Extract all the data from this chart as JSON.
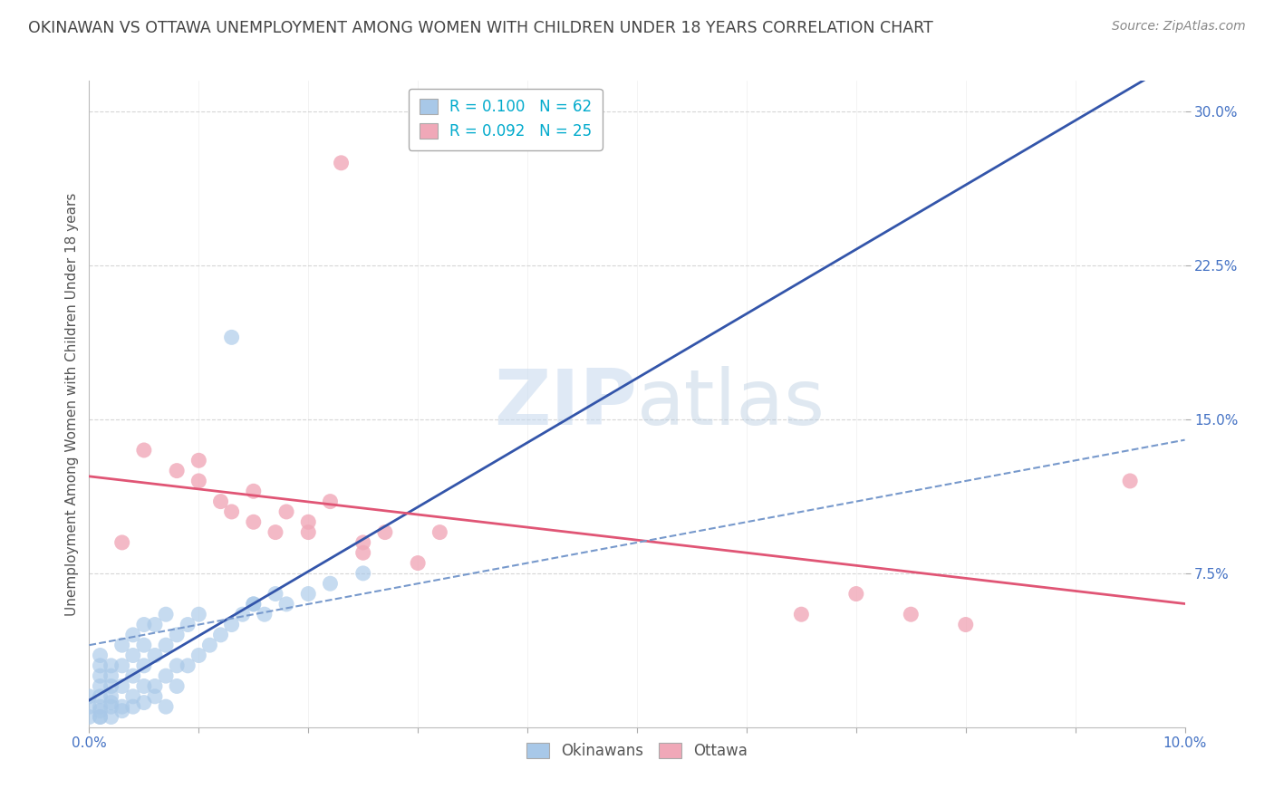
{
  "title": "OKINAWAN VS OTTAWA UNEMPLOYMENT AMONG WOMEN WITH CHILDREN UNDER 18 YEARS CORRELATION CHART",
  "source": "Source: ZipAtlas.com",
  "ylabel": "Unemployment Among Women with Children Under 18 years",
  "ytick_vals": [
    0.075,
    0.15,
    0.225,
    0.3
  ],
  "ytick_labels": [
    "7.5%",
    "15.0%",
    "22.5%",
    "30.0%"
  ],
  "xlim": [
    0.0,
    0.1
  ],
  "ylim": [
    0.0,
    0.315
  ],
  "watermark_zip": "ZIP",
  "watermark_atlas": "atlas",
  "legend": {
    "okinawan_R": "0.100",
    "okinawan_N": "62",
    "ottawa_R": "0.092",
    "ottawa_N": "25"
  },
  "okinawan_color": "#a8c8e8",
  "ottawa_color": "#f0a8b8",
  "okinawan_line_color": "#3355aa",
  "ottawa_line_color": "#e05575",
  "background_color": "#ffffff",
  "okinawan_x": [
    0.0,
    0.0,
    0.0,
    0.001,
    0.001,
    0.001,
    0.001,
    0.001,
    0.001,
    0.001,
    0.002,
    0.002,
    0.002,
    0.002,
    0.002,
    0.003,
    0.003,
    0.003,
    0.003,
    0.004,
    0.004,
    0.004,
    0.004,
    0.005,
    0.005,
    0.005,
    0.005,
    0.006,
    0.006,
    0.006,
    0.007,
    0.007,
    0.007,
    0.008,
    0.008,
    0.009,
    0.009,
    0.01,
    0.01,
    0.011,
    0.012,
    0.013,
    0.014,
    0.015,
    0.016,
    0.017,
    0.018,
    0.02,
    0.022,
    0.025,
    0.001,
    0.001,
    0.002,
    0.002,
    0.003,
    0.004,
    0.005,
    0.006,
    0.007,
    0.008,
    0.013,
    0.015
  ],
  "okinawan_y": [
    0.005,
    0.01,
    0.015,
    0.005,
    0.01,
    0.015,
    0.02,
    0.025,
    0.03,
    0.035,
    0.01,
    0.015,
    0.02,
    0.025,
    0.03,
    0.01,
    0.02,
    0.03,
    0.04,
    0.015,
    0.025,
    0.035,
    0.045,
    0.02,
    0.03,
    0.04,
    0.05,
    0.02,
    0.035,
    0.05,
    0.025,
    0.04,
    0.055,
    0.03,
    0.045,
    0.03,
    0.05,
    0.035,
    0.055,
    0.04,
    0.045,
    0.05,
    0.055,
    0.06,
    0.055,
    0.065,
    0.06,
    0.065,
    0.07,
    0.075,
    0.005,
    0.008,
    0.005,
    0.012,
    0.008,
    0.01,
    0.012,
    0.015,
    0.01,
    0.02,
    0.19,
    0.06
  ],
  "ottawa_x": [
    0.005,
    0.008,
    0.01,
    0.012,
    0.013,
    0.015,
    0.017,
    0.018,
    0.02,
    0.022,
    0.023,
    0.025,
    0.027,
    0.03,
    0.032,
    0.01,
    0.015,
    0.02,
    0.025,
    0.003,
    0.065,
    0.07,
    0.075,
    0.08,
    0.095
  ],
  "ottawa_y": [
    0.135,
    0.125,
    0.12,
    0.11,
    0.105,
    0.1,
    0.095,
    0.105,
    0.095,
    0.11,
    0.275,
    0.09,
    0.095,
    0.08,
    0.095,
    0.13,
    0.115,
    0.1,
    0.085,
    0.09,
    0.055,
    0.065,
    0.055,
    0.05,
    0.12
  ]
}
